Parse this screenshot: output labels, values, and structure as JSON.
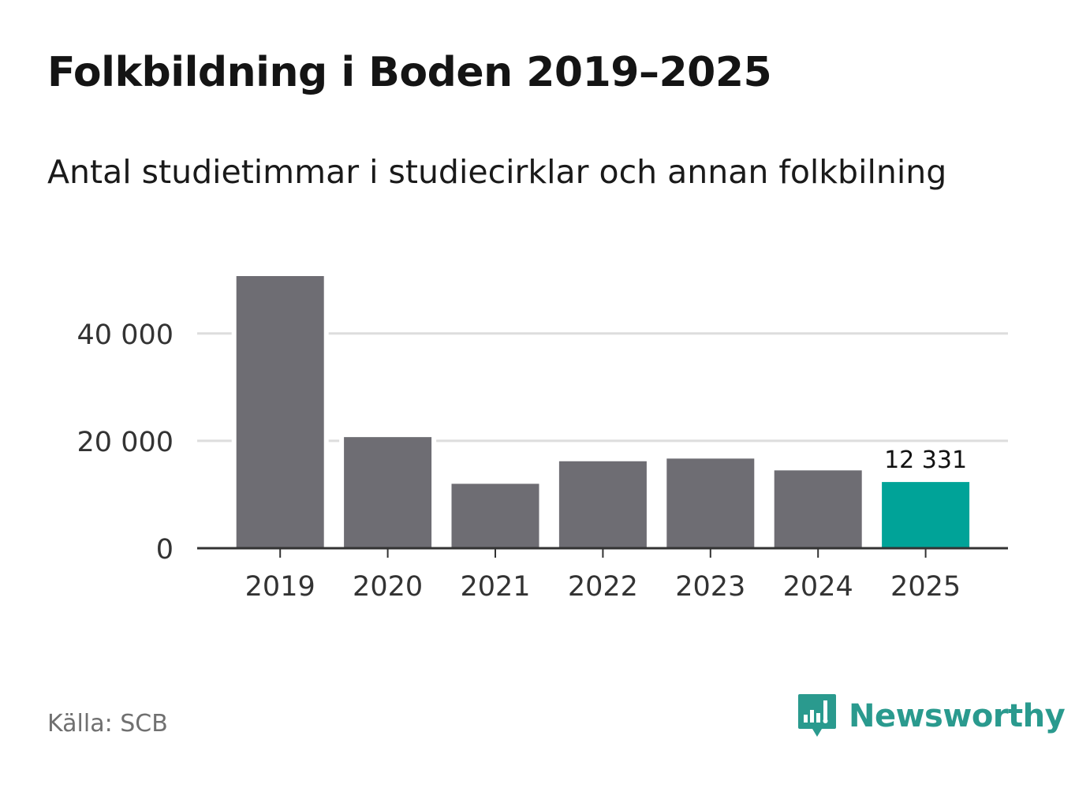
{
  "title": "Folkbildning i Boden 2019–2025",
  "subtitle": "Antal studietimmar i studiecirklar och annan folkbilning",
  "source": "Källa: SCB",
  "brand": "Newsworthy",
  "colors": {
    "bar": "#6e6d73",
    "highlight": "#00a398",
    "gridline": "#dddddd",
    "axis": "#333333",
    "brand": "#2a9a8e"
  },
  "chart_data": {
    "type": "bar",
    "title": "Folkbildning i Boden 2019–2025",
    "xlabel": "",
    "ylabel": "",
    "categories": [
      "2019",
      "2020",
      "2021",
      "2022",
      "2023",
      "2024",
      "2025"
    ],
    "values": [
      50700,
      20700,
      12000,
      16200,
      16700,
      14500,
      12331
    ],
    "highlight_index": 6,
    "data_labels": [
      {
        "index": 6,
        "text": "12 331"
      }
    ],
    "yticks": [
      0,
      20000,
      40000
    ],
    "ytick_labels": [
      "0",
      "20 000",
      "40 000"
    ],
    "ylim": [
      0,
      51000
    ],
    "grid": true
  }
}
